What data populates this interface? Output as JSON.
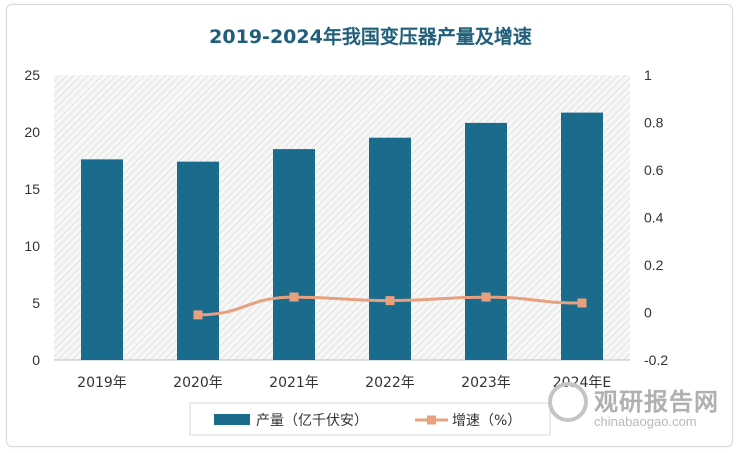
{
  "chart_data": {
    "type": "bar+line",
    "title": "2019-2024年我国变压器产量及增速",
    "categories": [
      "2019年",
      "2020年",
      "2021年",
      "2022年",
      "2023年",
      "2024年E"
    ],
    "series": [
      {
        "name": "产量（亿千伏安）",
        "type": "bar",
        "axis": "left",
        "color": "#1a6b8c",
        "values": [
          17.6,
          17.4,
          18.5,
          19.5,
          20.8,
          21.7
        ]
      },
      {
        "name": "增速（%）",
        "type": "line",
        "axis": "right",
        "color": "#e8a07f",
        "values": [
          null,
          -0.01,
          0.065,
          0.05,
          0.065,
          0.04
        ]
      }
    ],
    "left_axis": {
      "min": 0,
      "max": 25,
      "ticks": [
        "0",
        "5",
        "10",
        "15",
        "20",
        "25"
      ]
    },
    "right_axis": {
      "min": -0.2,
      "max": 1,
      "ticks": [
        "-0.2",
        "0",
        "0.2",
        "0.4",
        "0.6",
        "0.8",
        "1"
      ]
    },
    "legend_position": "bottom"
  },
  "watermark": {
    "text": "观研报告网",
    "url": "chinabaogao.com"
  }
}
